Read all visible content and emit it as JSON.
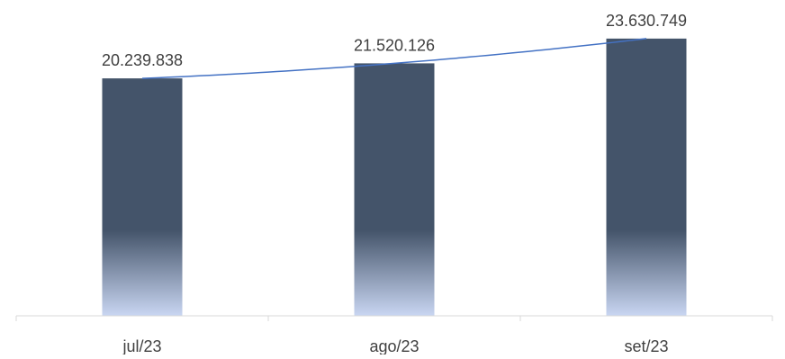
{
  "chart_data": {
    "type": "bar",
    "categories": [
      "jul/23",
      "ago/23",
      "set/23"
    ],
    "values": [
      20239838,
      21520126,
      23630749
    ],
    "data_labels": [
      "20.239.838",
      "21.520.126",
      "23.630.749"
    ],
    "title": "",
    "xlabel": "",
    "ylabel": "",
    "ylim": [
      0,
      26000000
    ],
    "y_axis_visible": false,
    "grid": false,
    "legend": "none",
    "trendline": {
      "type": "polynomial"
    },
    "colors": {
      "bar_top": "#44546a",
      "bar_bottom": "#c9d6f2",
      "trendline": "#4472c4",
      "axis": "#d9d9d9",
      "text": "#404040"
    }
  }
}
